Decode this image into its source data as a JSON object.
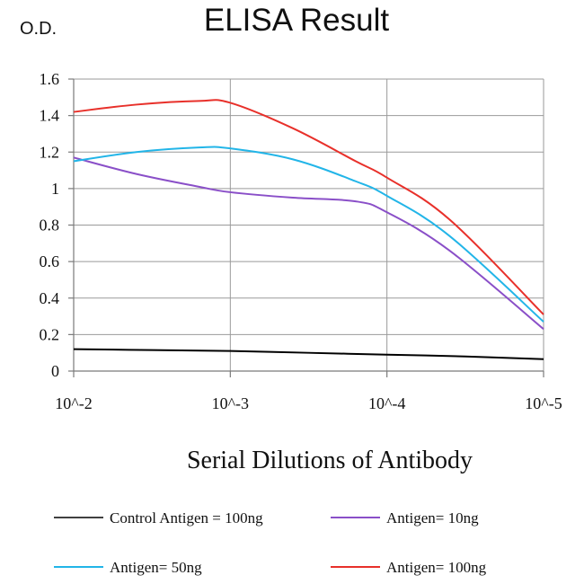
{
  "chart_data": {
    "type": "line",
    "title": "ELISA Result",
    "ylabel": "O.D.",
    "xlabel": "Serial Dilutions of Antibody",
    "categories": [
      "10^-2",
      "10^-3",
      "10^-4",
      "10^-5"
    ],
    "y_ticks": [
      "0",
      "0.2",
      "0.4",
      "0.6",
      "0.8",
      "1",
      "1.2",
      "1.4",
      "1.6"
    ],
    "ylim": [
      0,
      1.6
    ],
    "grid": true,
    "legend_position": "bottom",
    "series": [
      {
        "name": "Control Antigen = 100ng",
        "color": "#000000",
        "x": [
          0,
          0.5,
          1,
          1.5,
          2,
          2.5,
          3
        ],
        "values": [
          0.12,
          0.115,
          0.11,
          0.1,
          0.09,
          0.08,
          0.065
        ]
      },
      {
        "name": "Antigen= 10ng",
        "color": "#8a4fc8",
        "x": [
          0,
          0.4,
          0.8,
          1,
          1.4,
          1.8,
          2,
          2.4,
          3
        ],
        "values": [
          1.17,
          1.08,
          1.01,
          0.98,
          0.95,
          0.93,
          0.87,
          0.66,
          0.23
        ]
      },
      {
        "name": "Antigen= 50ng",
        "color": "#22b5e8",
        "x": [
          0,
          0.4,
          0.8,
          1,
          1.4,
          1.8,
          2,
          2.4,
          3
        ],
        "values": [
          1.15,
          1.2,
          1.225,
          1.22,
          1.16,
          1.04,
          0.96,
          0.74,
          0.27
        ]
      },
      {
        "name": "Antigen= 100ng",
        "color": "#e8302a",
        "x": [
          0,
          0.4,
          0.8,
          1,
          1.4,
          1.8,
          2,
          2.4,
          3
        ],
        "values": [
          1.42,
          1.46,
          1.48,
          1.47,
          1.33,
          1.15,
          1.06,
          0.83,
          0.31
        ]
      }
    ]
  }
}
